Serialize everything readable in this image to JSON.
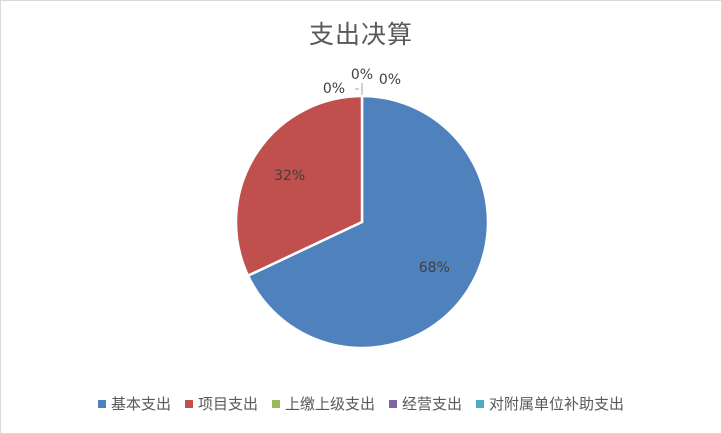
{
  "chart_data": {
    "type": "pie",
    "title": "支出决算",
    "categories": [
      "基本支出",
      "项目支出",
      "上缴上级支出",
      "经营支出",
      "对附属单位补助支出"
    ],
    "values": [
      68,
      32,
      0,
      0,
      0
    ],
    "labels": [
      "68%",
      "32%",
      "0%",
      "0%",
      "0%"
    ],
    "colors": [
      "#4f81bd",
      "#c0504d",
      "#9bbb59",
      "#8064a2",
      "#4bacc6"
    ],
    "legend_position": "bottom"
  }
}
